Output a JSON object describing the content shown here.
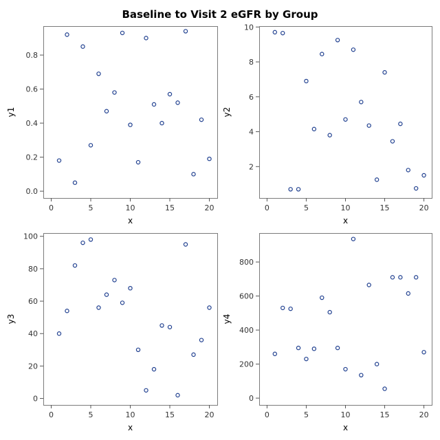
{
  "title": "Baseline to Visit 2 eGFR by Group",
  "colors": {
    "marker": "#1f3f8f",
    "frame": "#7a7a7a",
    "background": "#ffffff"
  },
  "chart_data": [
    {
      "type": "scatter",
      "xlabel": "x",
      "ylabel": "y1",
      "xlim": [
        -1,
        21
      ],
      "ylim": [
        -0.04,
        0.97
      ],
      "xticks": [
        0,
        5,
        10,
        15,
        20
      ],
      "yticks": [
        0.0,
        0.2,
        0.4,
        0.6,
        0.8
      ],
      "ytick_labels": [
        "0.0",
        "0.2",
        "0.4",
        "0.6",
        "0.8"
      ],
      "x": [
        1,
        2,
        3,
        4,
        5,
        6,
        7,
        8,
        9,
        10,
        11,
        12,
        13,
        14,
        15,
        16,
        17,
        18,
        19,
        20
      ],
      "y": [
        0.18,
        0.92,
        0.05,
        0.85,
        0.27,
        0.69,
        0.47,
        0.58,
        0.93,
        0.39,
        0.17,
        0.9,
        0.51,
        0.4,
        0.57,
        0.52,
        0.94,
        0.1,
        0.42,
        0.19
      ]
    },
    {
      "type": "scatter",
      "xlabel": "x",
      "ylabel": "y2",
      "xlim": [
        -1,
        21
      ],
      "ylim": [
        0.2,
        10.05
      ],
      "xticks": [
        0,
        5,
        10,
        15,
        20
      ],
      "yticks": [
        2,
        4,
        6,
        8,
        10
      ],
      "ytick_labels": [
        "2",
        "4",
        "6",
        "8",
        "10"
      ],
      "x": [
        1,
        2,
        3,
        4,
        5,
        6,
        7,
        8,
        9,
        10,
        11,
        12,
        13,
        14,
        15,
        16,
        17,
        18,
        19,
        20
      ],
      "y": [
        9.7,
        9.65,
        0.7,
        0.7,
        6.9,
        4.15,
        8.45,
        3.8,
        9.25,
        4.7,
        8.7,
        5.7,
        4.35,
        1.25,
        7.4,
        3.45,
        4.45,
        1.8,
        0.75,
        1.5
      ]
    },
    {
      "type": "scatter",
      "xlabel": "x",
      "ylabel": "y3",
      "xlim": [
        -1,
        21
      ],
      "ylim": [
        -4,
        102
      ],
      "xticks": [
        0,
        5,
        10,
        15,
        20
      ],
      "yticks": [
        0,
        20,
        40,
        60,
        80,
        100
      ],
      "ytick_labels": [
        "0",
        "20",
        "40",
        "60",
        "80",
        "100"
      ],
      "x": [
        1,
        2,
        3,
        4,
        5,
        6,
        7,
        8,
        9,
        10,
        11,
        12,
        13,
        14,
        15,
        16,
        17,
        18,
        19,
        20
      ],
      "y": [
        40,
        54,
        82,
        96,
        98,
        56,
        64,
        73,
        59,
        68,
        30,
        5,
        18,
        45,
        44,
        2,
        95,
        27,
        36,
        56
      ]
    },
    {
      "type": "scatter",
      "xlabel": "x",
      "ylabel": "y4",
      "xlim": [
        -1,
        21
      ],
      "ylim": [
        -40,
        970
      ],
      "xticks": [
        0,
        5,
        10,
        15,
        20
      ],
      "yticks": [
        0,
        200,
        400,
        600,
        800
      ],
      "ytick_labels": [
        "0",
        "200",
        "400",
        "600",
        "800"
      ],
      "x": [
        1,
        2,
        3,
        4,
        5,
        6,
        7,
        8,
        9,
        10,
        11,
        12,
        13,
        14,
        15,
        16,
        17,
        18,
        19,
        20
      ],
      "y": [
        260,
        530,
        525,
        295,
        230,
        290,
        590,
        505,
        295,
        170,
        935,
        135,
        665,
        200,
        55,
        710,
        710,
        615,
        710,
        270
      ]
    }
  ]
}
